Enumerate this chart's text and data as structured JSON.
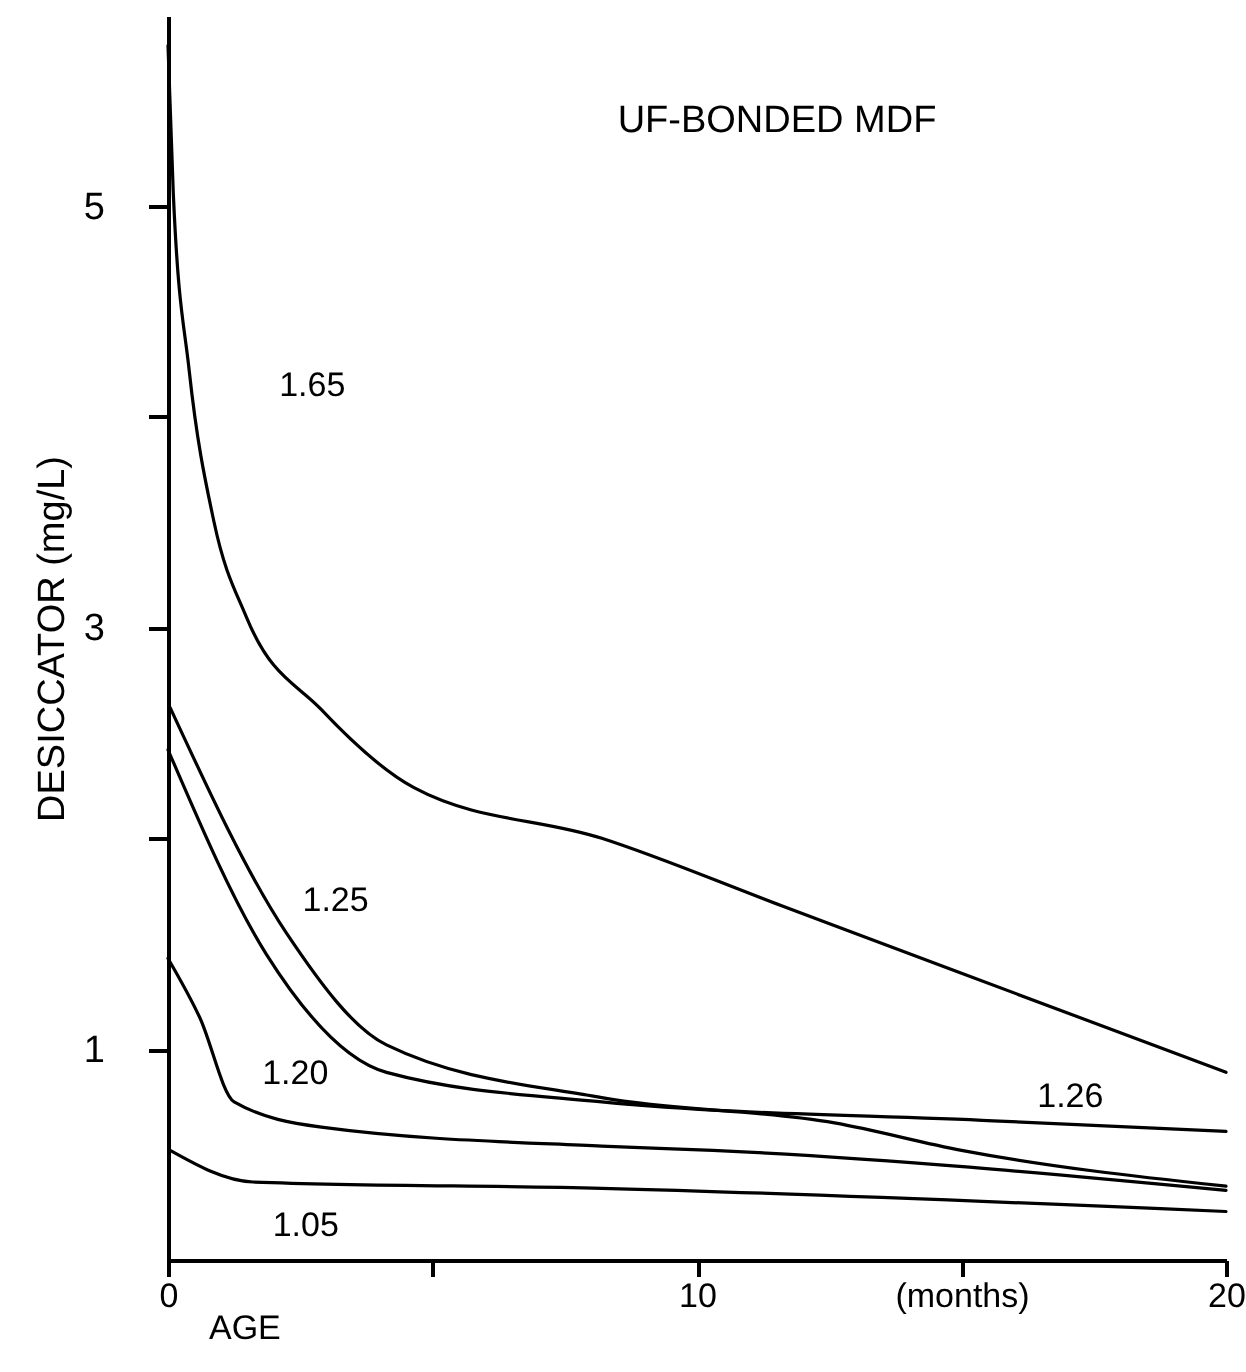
{
  "chart_data": {
    "type": "line",
    "title": "UF-BONDED MDF",
    "xlabel": "AGE",
    "ylabel": "DESICCATOR (mg/L)",
    "xlim": [
      0,
      20
    ],
    "xticks": [
      0,
      {
        "value": 5,
        "label": null
      },
      10,
      {
        "value": 15,
        "label": "(months)"
      },
      20
    ],
    "ylim": [
      0,
      5.9
    ],
    "yticks": [
      1,
      {
        "value": 2,
        "label": null
      },
      3,
      {
        "value": 4,
        "label": null
      },
      5
    ],
    "grid": false,
    "legend": false,
    "line_style": "solid",
    "series": [
      {
        "name": "1.65",
        "color": "#000000",
        "x": [
          0,
          0.1,
          0.4,
          0.87,
          1.48,
          2.9,
          4.65,
          8.2,
          11.6,
          15,
          20
        ],
        "values": [
          5.76,
          5.06,
          4.22,
          3.5,
          3.05,
          2.61,
          2.24,
          2.0,
          1.68,
          1.36,
          0.89
        ]
      },
      {
        "name": "1.26",
        "color": "#000000",
        "x": [
          0,
          1.86,
          4.13,
          8.2,
          15.6,
          20
        ],
        "values": [
          2.42,
          1.45,
          0.89,
          0.75,
          0.66,
          0.61
        ]
      },
      {
        "name": "1.25",
        "color": "#000000",
        "x": [
          0.04,
          2.24,
          4.13,
          8.2,
          12.6,
          15,
          20
        ],
        "values": [
          2.62,
          1.55,
          1.02,
          0.77,
          0.65,
          0.52,
          0.35
        ]
      },
      {
        "name": "1.20",
        "color": "#000000",
        "x": [
          0,
          0.6,
          1.25,
          2.9,
          8.2,
          10.3,
          20
        ],
        "values": [
          1.43,
          1.15,
          0.75,
          0.63,
          0.54,
          0.52,
          0.33
        ]
      },
      {
        "name": "1.05",
        "color": "#000000",
        "x": [
          0.04,
          1.6,
          8.2,
          20
        ],
        "values": [
          0.52,
          0.37,
          0.34,
          0.23
        ]
      }
    ]
  }
}
